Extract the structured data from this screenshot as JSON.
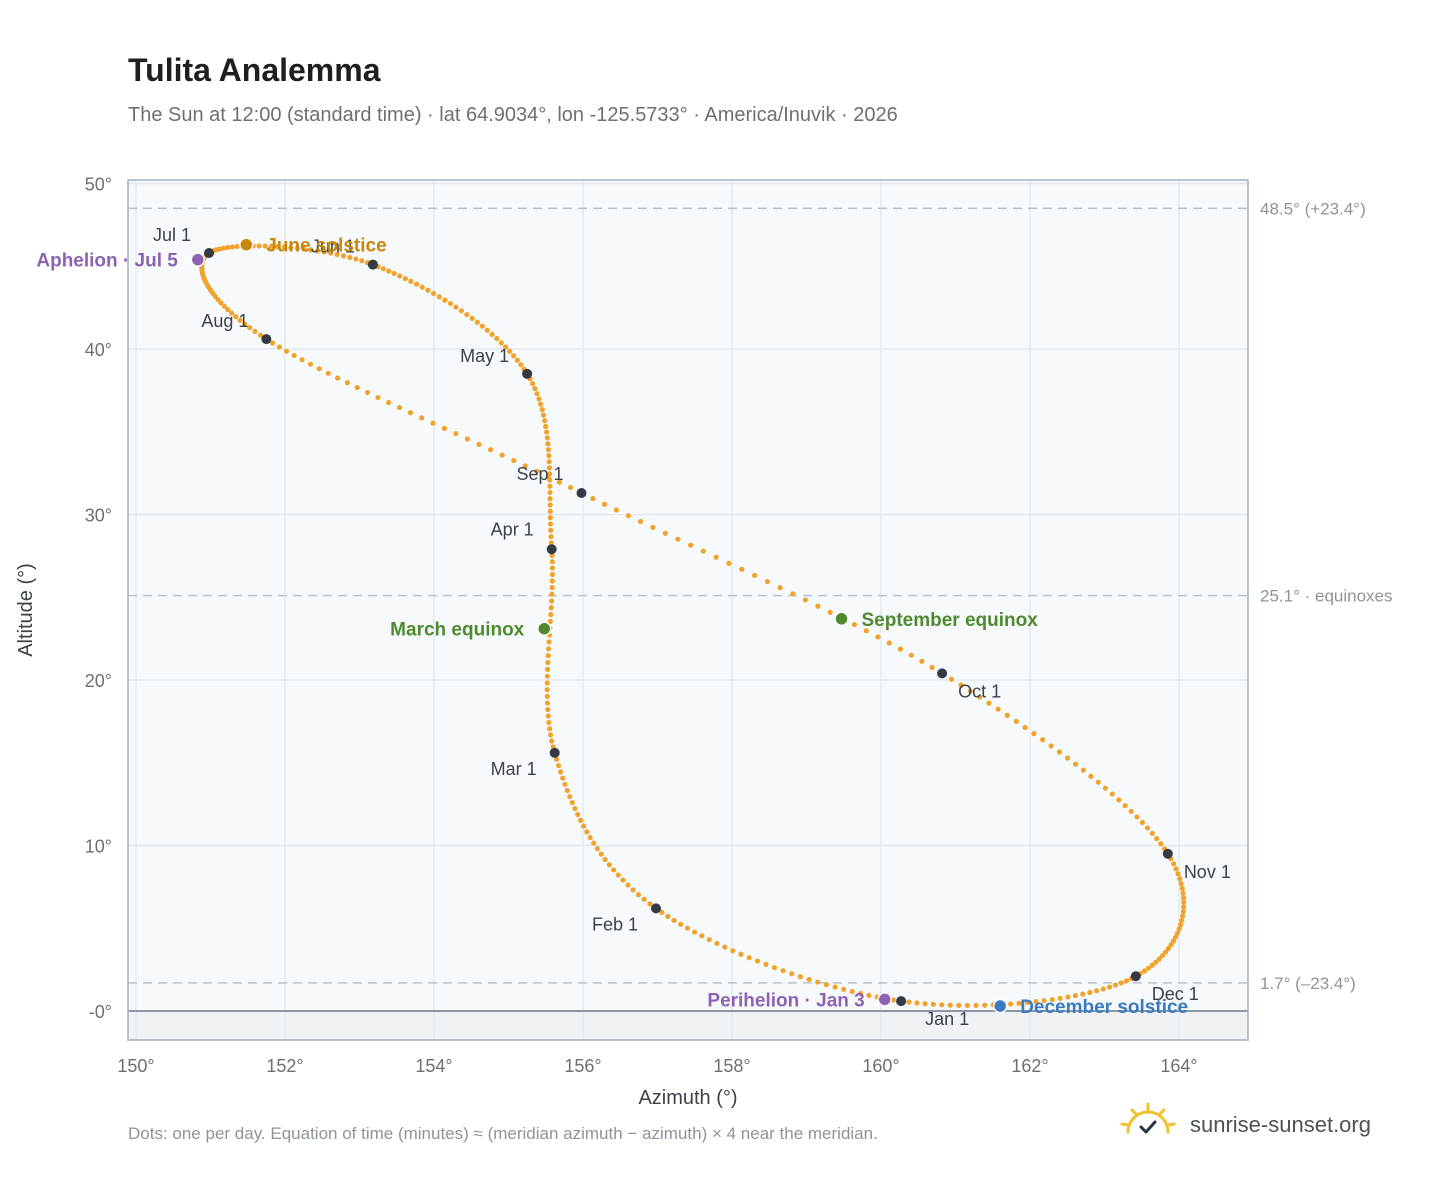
{
  "header": {
    "title": "Tulita Analemma",
    "subtitle": "The Sun at 12:00 (standard time) · lat 64.9034°, lon -125.5733° · America/Inuvik · 2026"
  },
  "footer": {
    "note": "Dots: one per day. Equation of time (minutes) ≈ (meridian azimuth − azimuth) × 4 near the meridian.",
    "brand": "sunrise-sunset.org"
  },
  "colors": {
    "curve": "#f2a32b",
    "month_marker": "#333a44",
    "solstice_june": "#c8870b",
    "solstice_december": "#3a7abf",
    "equinox": "#4f8a2e",
    "apsis": "#8d63b3",
    "reference_line": "#b8c2cc",
    "plot_background": "#f7fafc",
    "below_horizon": "#eff3f6"
  },
  "chart_data": {
    "type": "scatter",
    "xlabel": "Azimuth (°)",
    "ylabel": "Altitude (°)",
    "xlim": [
      150,
      165
    ],
    "ylim": [
      -1.7,
      50.5
    ],
    "xticks": [
      {
        "value": 150,
        "label": "150°"
      },
      {
        "value": 152,
        "label": "152°"
      },
      {
        "value": 154,
        "label": "154°"
      },
      {
        "value": 156,
        "label": "156°"
      },
      {
        "value": 158,
        "label": "158°"
      },
      {
        "value": 160,
        "label": "160°"
      },
      {
        "value": 162,
        "label": "162°"
      },
      {
        "value": 164,
        "label": "164°"
      }
    ],
    "yticks": [
      {
        "value": 0,
        "label": "-0°"
      },
      {
        "value": 10,
        "label": "10°"
      },
      {
        "value": 20,
        "label": "20°"
      },
      {
        "value": 30,
        "label": "30°"
      },
      {
        "value": 40,
        "label": "40°"
      },
      {
        "value": 50,
        "label": "50°"
      }
    ],
    "grid": true,
    "horizon_altitude": 0,
    "reference_lines": [
      {
        "altitude": 48.5,
        "label": "48.5° (+23.4°)"
      },
      {
        "altitude": 25.1,
        "label": "25.1° · equinoxes"
      },
      {
        "altitude": 1.7,
        "label": "1.7° (–23.4°)"
      }
    ],
    "month_points": [
      {
        "label": "Jan 1",
        "azimuth": 160.27,
        "altitude": 0.6
      },
      {
        "label": "Feb 1",
        "azimuth": 156.98,
        "altitude": 6.2
      },
      {
        "label": "Mar 1",
        "azimuth": 155.62,
        "altitude": 15.6
      },
      {
        "label": "Apr 1",
        "azimuth": 155.58,
        "altitude": 27.9
      },
      {
        "label": "May 1",
        "azimuth": 155.25,
        "altitude": 38.5
      },
      {
        "label": "Jun 1",
        "azimuth": 153.18,
        "altitude": 45.1
      },
      {
        "label": "Jul 1",
        "azimuth": 150.98,
        "altitude": 45.8
      },
      {
        "label": "Aug 1",
        "azimuth": 151.75,
        "altitude": 40.6
      },
      {
        "label": "Sep 1",
        "azimuth": 155.98,
        "altitude": 31.3
      },
      {
        "label": "Oct 1",
        "azimuth": 160.82,
        "altitude": 20.4
      },
      {
        "label": "Nov 1",
        "azimuth": 163.85,
        "altitude": 9.5
      },
      {
        "label": "Dec 1",
        "azimuth": 163.42,
        "altitude": 2.1
      }
    ],
    "events": [
      {
        "label": "June solstice",
        "azimuth": 151.48,
        "altitude": 46.3,
        "kind": "june"
      },
      {
        "label": "December solstice",
        "azimuth": 161.6,
        "altitude": 0.3,
        "kind": "december"
      },
      {
        "label": "March equinox",
        "azimuth": 155.48,
        "altitude": 23.1,
        "kind": "equinox"
      },
      {
        "label": "September equinox",
        "azimuth": 159.47,
        "altitude": 23.7,
        "kind": "equinox"
      },
      {
        "label": "Perihelion · Jan 3",
        "azimuth": 160.05,
        "altitude": 0.7,
        "kind": "apsis"
      },
      {
        "label": "Aphelion · Jul 5",
        "azimuth": 150.83,
        "altitude": 45.4,
        "kind": "apsis"
      }
    ]
  }
}
